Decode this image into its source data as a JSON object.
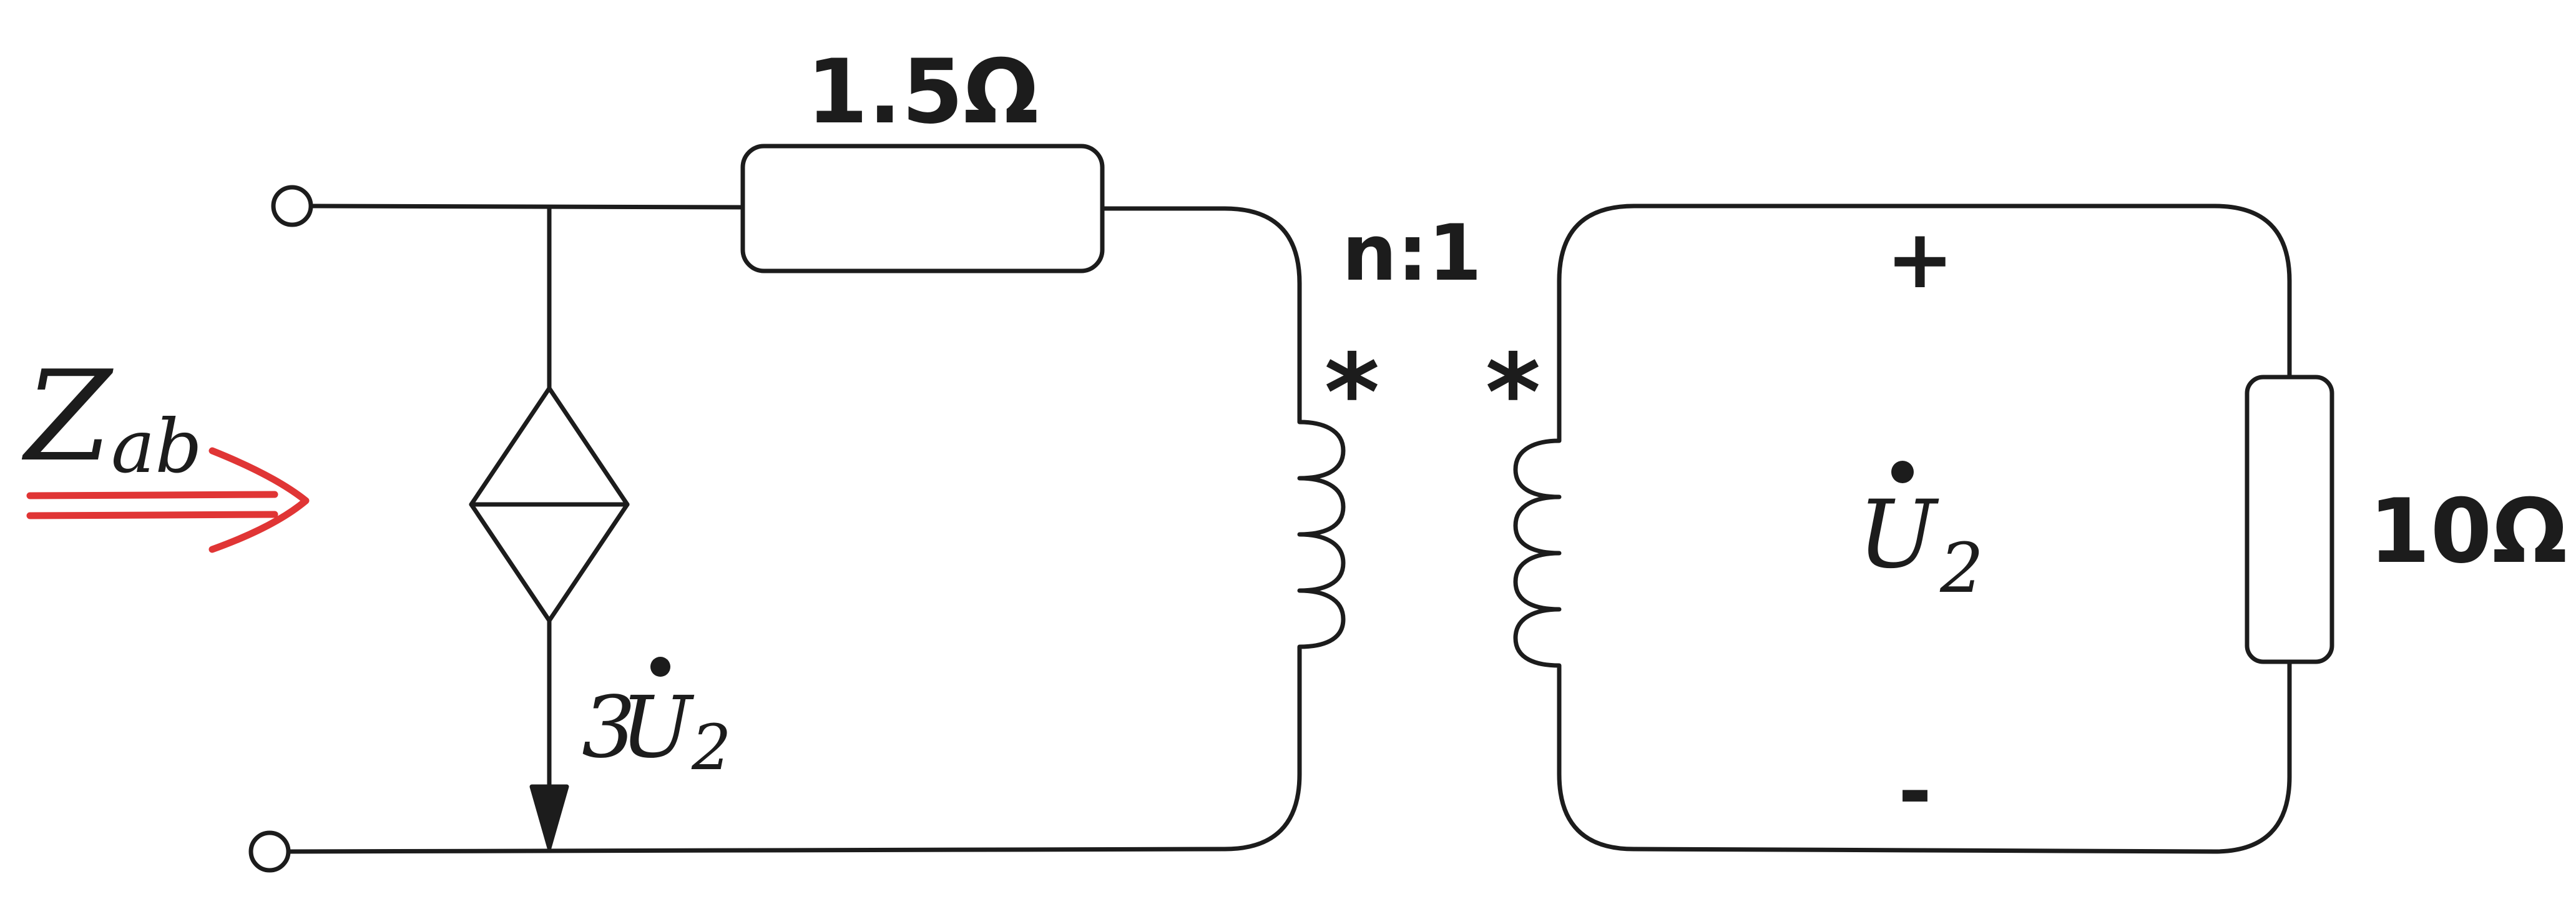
{
  "labels": {
    "series_resistor": "1.5Ω",
    "load_resistor": "10Ω",
    "turns_ratio": "n:1",
    "primary_dot": "*",
    "secondary_dot": "*",
    "plus_sign": "+",
    "minus_sign": "-",
    "impedance_symbol": "Z",
    "impedance_subscript": "ab",
    "voltage_symbol": "U",
    "voltage_subscript": "2",
    "source_coefficient": "3"
  },
  "colors": {
    "ink": "#1c1c1c",
    "arrow": "#e03535"
  }
}
